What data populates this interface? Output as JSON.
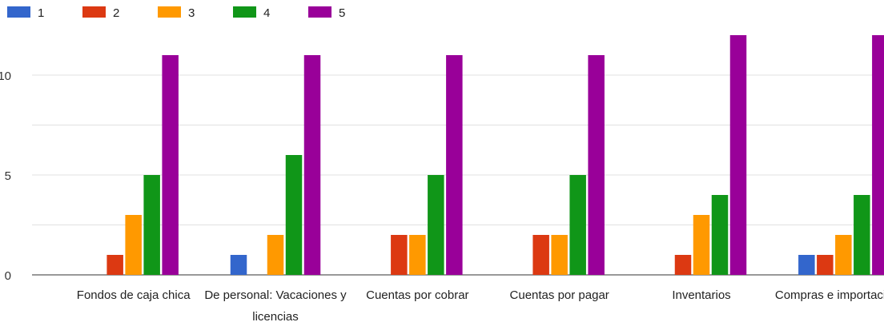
{
  "chart_data": {
    "type": "bar",
    "title": "",
    "xlabel": "",
    "ylabel": "",
    "ylim": [
      0,
      12
    ],
    "yticks": [
      0,
      5,
      10
    ],
    "grid": true,
    "legend_position": "top-left",
    "categories": [
      [
        "Fondos de caja chica"
      ],
      [
        "De personal: Vacaciones y",
        "licencias"
      ],
      [
        "Cuentas por cobrar"
      ],
      [
        "Cuentas por pagar"
      ],
      [
        "Inventarios"
      ],
      [
        "Compras e importaciones"
      ]
    ],
    "series": [
      {
        "name": "1",
        "color": "#3366cc",
        "values": [
          0,
          1,
          0,
          0,
          0,
          1
        ]
      },
      {
        "name": "2",
        "color": "#dc3912",
        "values": [
          1,
          0,
          2,
          2,
          1,
          1
        ]
      },
      {
        "name": "3",
        "color": "#ff9900",
        "values": [
          3,
          2,
          2,
          2,
          3,
          2
        ]
      },
      {
        "name": "4",
        "color": "#109618",
        "values": [
          5,
          6,
          5,
          5,
          4,
          4
        ]
      },
      {
        "name": "5",
        "color": "#990099",
        "values": [
          11,
          11,
          11,
          11,
          12,
          12
        ]
      }
    ]
  }
}
